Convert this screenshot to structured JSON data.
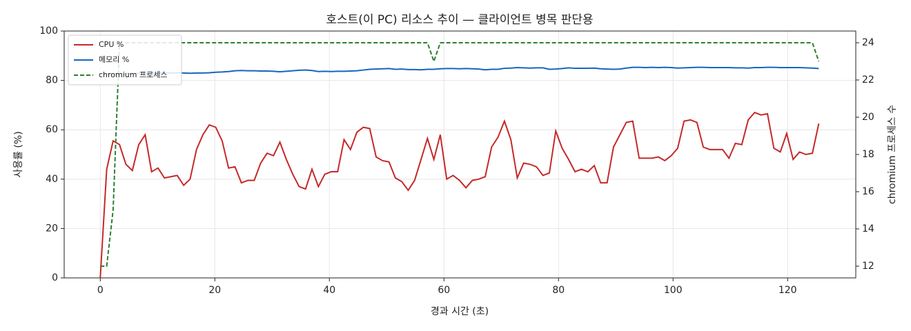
{
  "chart_data": {
    "type": "line",
    "title": "호스트(이 PC) 리소스 추이 — 클라이언트 병목 판단용",
    "xlabel": "경과 시간 (초)",
    "ylabel": "사용률 (%)",
    "y2label": "chromium 프로세스 수",
    "x": [
      0,
      1.12,
      2.24,
      3.36,
      4.48,
      5.6,
      6.72,
      7.84,
      8.96,
      10.08,
      11.2,
      12.32,
      13.44,
      14.56,
      15.68,
      16.8,
      17.92,
      19.04,
      20.16,
      21.28,
      22.4,
      23.52,
      24.64,
      25.76,
      26.88,
      28,
      29.12,
      30.24,
      31.36,
      32.48,
      33.6,
      34.72,
      35.84,
      36.96,
      38.08,
      39.2,
      40.32,
      41.44,
      42.56,
      43.68,
      44.8,
      45.92,
      47.04,
      48.16,
      49.28,
      50.4,
      51.52,
      52.64,
      53.76,
      54.88,
      56,
      57.12,
      58.24,
      59.36,
      60.48,
      61.6,
      62.72,
      63.84,
      64.96,
      66.08,
      67.2,
      68.32,
      69.44,
      70.56,
      71.68,
      72.8,
      73.92,
      75.04,
      76.16,
      77.28,
      78.4,
      79.52,
      80.64,
      81.76,
      82.88,
      84,
      85.12,
      86.24,
      87.36,
      88.48,
      89.6,
      90.72,
      91.84,
      92.96,
      94.08,
      95.2,
      96.32,
      97.44,
      98.56,
      99.68,
      100.8,
      101.92,
      103.04,
      104.16,
      105.28,
      106.4,
      107.52,
      108.64,
      109.76,
      110.88,
      112,
      113.12,
      114.24,
      115.36,
      116.48,
      117.6,
      118.72,
      119.84,
      120.96,
      122.08,
      123.2,
      124.32,
      125.44
    ],
    "series": [
      {
        "name": "CPU %",
        "color": "#c62828",
        "dash": false,
        "values": [
          0,
          44,
          55.5,
          54,
          46,
          43.5,
          54,
          58,
          43,
          44.5,
          40.5,
          41,
          41.5,
          37.5,
          40,
          52,
          58,
          62,
          61,
          55.5,
          44.5,
          45,
          38.5,
          39.5,
          39.5,
          46.5,
          50.5,
          49.5,
          55,
          48,
          42,
          37,
          36,
          44,
          37,
          42,
          43,
          43,
          56,
          52,
          59,
          61,
          60.5,
          49,
          47.5,
          47,
          40.5,
          39,
          35.5,
          39.5,
          48,
          56.5,
          48,
          58,
          40,
          41.5,
          39.5,
          36.5,
          39.5,
          40,
          41,
          53,
          57,
          63.5,
          56,
          40.5,
          46.5,
          46,
          45,
          41.5,
          42.5,
          59.5,
          52.5,
          48,
          43,
          44,
          43,
          45.5,
          38.5,
          38.5,
          53,
          58,
          63,
          63.5,
          48.5,
          48.5,
          48.5,
          49,
          47.5,
          49.5,
          52.5,
          63.5,
          64,
          63,
          53,
          52,
          52,
          52,
          48.5,
          54.5,
          54,
          64,
          67,
          66,
          66.5,
          52.5,
          51,
          58.5,
          48,
          51,
          50,
          50.5,
          62.5
        ]
      },
      {
        "name": "메모리 %",
        "color": "#1565c0",
        "dash": false,
        "values": [
          82.5,
          82.5,
          82.6,
          82.7,
          82.8,
          82.8,
          82.9,
          82.9,
          83,
          83,
          83,
          83,
          83.1,
          83,
          82.9,
          83,
          83,
          83.1,
          83.3,
          83.4,
          83.6,
          83.9,
          84,
          83.9,
          83.9,
          83.8,
          83.8,
          83.7,
          83.5,
          83.7,
          83.9,
          84.1,
          84.2,
          84,
          83.6,
          83.7,
          83.6,
          83.7,
          83.7,
          83.8,
          83.9,
          84.2,
          84.5,
          84.6,
          84.7,
          84.8,
          84.5,
          84.6,
          84.4,
          84.4,
          84.3,
          84.5,
          84.5,
          84.7,
          84.8,
          84.8,
          84.7,
          84.8,
          84.7,
          84.6,
          84.3,
          84.5,
          84.5,
          84.9,
          85,
          85.2,
          85.1,
          85,
          85.1,
          85.1,
          84.5,
          84.6,
          84.8,
          85.1,
          84.9,
          84.9,
          84.9,
          85,
          84.7,
          84.6,
          84.5,
          84.6,
          85,
          85.3,
          85.3,
          85.2,
          85.3,
          85.2,
          85.3,
          85.2,
          85,
          85.1,
          85.2,
          85.3,
          85.3,
          85.2,
          85.2,
          85.2,
          85.2,
          85.1,
          85.1,
          85,
          85.2,
          85.2,
          85.3,
          85.3,
          85.2,
          85.2,
          85.2,
          85.2,
          85.1,
          85,
          84.8
        ]
      },
      {
        "name": "chromium 프로세스",
        "color": "#2e7d32",
        "dash": true,
        "axis": "y2",
        "values": [
          12,
          12,
          15,
          24,
          24,
          24,
          24,
          24,
          24,
          24,
          24,
          24,
          24,
          24,
          24,
          24,
          24,
          24,
          24,
          24,
          24,
          24,
          24,
          24,
          24,
          24,
          24,
          24,
          24,
          24,
          24,
          24,
          24,
          24,
          24,
          24,
          24,
          24,
          24,
          24,
          24,
          24,
          24,
          24,
          24,
          24,
          24,
          24,
          24,
          24,
          24,
          24,
          23,
          24,
          24,
          24,
          24,
          24,
          24,
          24,
          24,
          24,
          24,
          24,
          24,
          24,
          24,
          24,
          24,
          24,
          24,
          24,
          24,
          24,
          24,
          24,
          24,
          24,
          24,
          24,
          24,
          24,
          24,
          24,
          24,
          24,
          24,
          24,
          24,
          24,
          24,
          24,
          24,
          24,
          24,
          24,
          24,
          24,
          24,
          24,
          24,
          24,
          24,
          24,
          24,
          24,
          24,
          24,
          24,
          24,
          24,
          24,
          23
        ]
      }
    ],
    "xlim": [
      -6.3,
      131.9
    ],
    "xticks": [
      0,
      20,
      40,
      60,
      80,
      100,
      120
    ],
    "ylim": [
      0,
      100
    ],
    "yticks": [
      0,
      20,
      40,
      60,
      80,
      100
    ],
    "y2lim": [
      11.37,
      24.63
    ],
    "y2ticks": [
      12,
      14,
      16,
      18,
      20,
      22,
      24
    ],
    "grid": true,
    "legend": "upper left"
  }
}
